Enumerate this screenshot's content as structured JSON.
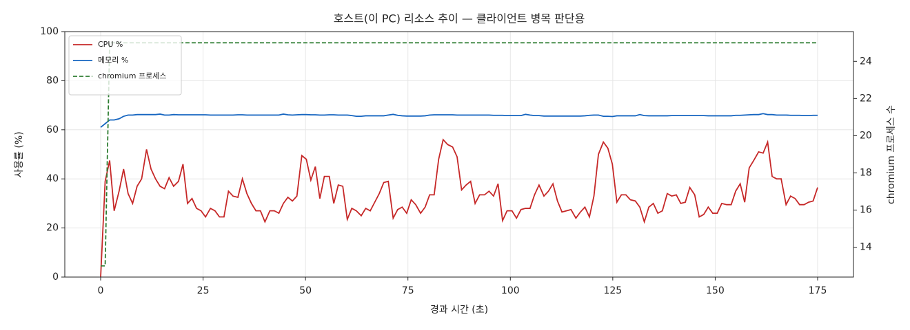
{
  "chart_data": {
    "type": "line",
    "title": "호스트(이 PC) 리소스 추이 — 클라이언트 병목 판단용",
    "x_label": "경과 시간 (초)",
    "y_label": "사용률 (%)",
    "y2_label": "chromium 프로세스 수",
    "x": [
      0,
      1.1,
      2.2,
      3.3,
      4.5,
      5.6,
      6.7,
      7.8,
      8.9,
      10.0,
      11.2,
      12.3,
      13.4,
      14.5,
      15.6,
      16.7,
      17.8,
      19.0,
      20.1,
      21.2,
      22.3,
      23.4,
      24.5,
      25.6,
      26.8,
      27.9,
      29.0,
      30.1,
      31.2,
      32.3,
      33.5,
      34.6,
      35.7,
      36.8,
      37.9,
      39.0,
      40.1,
      41.3,
      42.4,
      43.5,
      44.6,
      45.7,
      46.8,
      47.9,
      49.1,
      50.2,
      51.3,
      52.4,
      53.5,
      54.6,
      55.8,
      56.9,
      58.0,
      59.1,
      60.2,
      61.3,
      62.4,
      63.6,
      64.7,
      65.8,
      66.9,
      68.0,
      69.1,
      70.2,
      71.4,
      72.5,
      73.6,
      74.7,
      75.8,
      76.9,
      78.1,
      79.2,
      80.3,
      81.4,
      82.5,
      83.6,
      84.7,
      85.9,
      87.0,
      88.1,
      89.2,
      90.3,
      91.4,
      92.5,
      93.7,
      94.8,
      95.9,
      97.0,
      98.1,
      99.2,
      100.4,
      101.5,
      102.6,
      103.7,
      104.8,
      105.9,
      107.0,
      108.2,
      109.3,
      110.4,
      111.5,
      112.6,
      113.7,
      114.8,
      116.0,
      117.1,
      118.2,
      119.3,
      120.4,
      121.5,
      122.7,
      123.8,
      124.9,
      126.0,
      127.1,
      128.2,
      129.3,
      130.5,
      131.6,
      132.7,
      133.8,
      134.9,
      136.0,
      137.1,
      138.3,
      139.4,
      140.5,
      141.6,
      142.7,
      143.8,
      145.0,
      146.1,
      147.2,
      148.3,
      149.4,
      150.5,
      151.6,
      152.8,
      153.9,
      155.0,
      156.1,
      157.2,
      158.3,
      159.4,
      160.6,
      161.7,
      162.8,
      163.9,
      165.0,
      166.1,
      167.3,
      168.4,
      169.5,
      170.6,
      171.7,
      172.8,
      173.9,
      175.0
    ],
    "series": [
      {
        "name": "CPU %",
        "color": "#c62828",
        "dash": false,
        "values": [
          0,
          39,
          47.5,
          27,
          35,
          44,
          34,
          30,
          37,
          40,
          52,
          44,
          40,
          37,
          36,
          40.5,
          37,
          39,
          46,
          30,
          32,
          28,
          27,
          24.5,
          28,
          27,
          24.5,
          24.5,
          35,
          33,
          32.5,
          40,
          34,
          30,
          27,
          27,
          22.5,
          27,
          27,
          26,
          30,
          32.5,
          31,
          33,
          49.5,
          48,
          39.5,
          45,
          32,
          41,
          41,
          30,
          37.5,
          37,
          23.5,
          28,
          27,
          25,
          28,
          27,
          30.5,
          34,
          38.5,
          39,
          24,
          27.5,
          28.5,
          26,
          31.5,
          29.5,
          26,
          28.5,
          33.5,
          33.5,
          48,
          56,
          54,
          53,
          49,
          35.5,
          37.5,
          39,
          30,
          33.5,
          33.5,
          35,
          33,
          38,
          23,
          27,
          27,
          24,
          27.5,
          28,
          28,
          33.5,
          37.5,
          33,
          35,
          38,
          31,
          26.5,
          27,
          27.5,
          24,
          26.5,
          28.5,
          24.5,
          33,
          50,
          55,
          52.5,
          46,
          30.5,
          33.5,
          33.5,
          31.5,
          31,
          28.5,
          22.5,
          28.5,
          30,
          26,
          27,
          34,
          33,
          33.5,
          30,
          30.5,
          36.5,
          33.5,
          24.5,
          25.5,
          28.5,
          26,
          26,
          30,
          29.5,
          29.5,
          35,
          38,
          30.5,
          44.5,
          47.5,
          51,
          50.5,
          55,
          41,
          40,
          40,
          29.5,
          33,
          32,
          29.5,
          29.5,
          30.5,
          31,
          36.5
        ]
      },
      {
        "name": "메모리 %",
        "color": "#1565c0",
        "dash": false,
        "values": [
          61,
          62.5,
          64,
          64,
          64.5,
          65.5,
          66,
          66,
          66.2,
          66.2,
          66.2,
          66.2,
          66.2,
          66.4,
          66,
          66,
          66.2,
          66.1,
          66.1,
          66.1,
          66.1,
          66.1,
          66.1,
          66.1,
          66,
          66,
          66,
          66,
          66,
          66,
          66.1,
          66.1,
          66,
          66,
          66,
          66,
          66,
          66,
          66,
          66,
          66.4,
          66.1,
          66,
          66.1,
          66.2,
          66.2,
          66.1,
          66.1,
          66,
          66,
          66.1,
          66.1,
          66,
          66,
          66,
          65.8,
          65.5,
          65.5,
          65.7,
          65.7,
          65.7,
          65.7,
          65.7,
          66,
          66.3,
          65.9,
          65.7,
          65.6,
          65.6,
          65.6,
          65.6,
          65.7,
          66,
          66.1,
          66.1,
          66.1,
          66.1,
          66.1,
          66,
          66,
          66,
          66,
          66,
          66,
          66,
          66,
          65.9,
          65.9,
          65.9,
          65.8,
          65.8,
          65.8,
          65.8,
          66.3,
          66,
          65.8,
          65.8,
          65.6,
          65.6,
          65.6,
          65.6,
          65.6,
          65.6,
          65.6,
          65.6,
          65.6,
          65.7,
          65.9,
          66,
          66,
          65.5,
          65.5,
          65.4,
          65.7,
          65.7,
          65.7,
          65.7,
          65.7,
          66.2,
          65.8,
          65.7,
          65.7,
          65.7,
          65.7,
          65.7,
          65.8,
          65.8,
          65.8,
          65.8,
          65.8,
          65.8,
          65.8,
          65.8,
          65.7,
          65.7,
          65.7,
          65.7,
          65.7,
          65.7,
          65.9,
          65.9,
          66,
          66.1,
          66.2,
          66.2,
          66.6,
          66.2,
          66.2,
          66,
          66,
          66,
          65.9,
          65.9,
          65.9,
          65.8,
          65.8,
          65.9,
          65.9
        ]
      },
      {
        "name": "chromium 프로세스",
        "color": "#2e7d32",
        "dash": true,
        "axis": "y2",
        "values": [
          13,
          13,
          25,
          25,
          25,
          25,
          25,
          25,
          25,
          25,
          25,
          25,
          25,
          25,
          25,
          25,
          25,
          25,
          25,
          25,
          25,
          25,
          25,
          25,
          25,
          25,
          25,
          25,
          25,
          25,
          25,
          25,
          25,
          25,
          25,
          25,
          25,
          25,
          25,
          25,
          25,
          25,
          25,
          25,
          25,
          25,
          25,
          25,
          25,
          25,
          25,
          25,
          25,
          25,
          25,
          25,
          25,
          25,
          25,
          25,
          25,
          25,
          25,
          25,
          25,
          25,
          25,
          25,
          25,
          25,
          25,
          25,
          25,
          25,
          25,
          25,
          25,
          25,
          25,
          25,
          25,
          25,
          25,
          25,
          25,
          25,
          25,
          25,
          25,
          25,
          25,
          25,
          25,
          25,
          25,
          25,
          25,
          25,
          25,
          25,
          25,
          25,
          25,
          25,
          25,
          25,
          25,
          25,
          25,
          25,
          25,
          25,
          25,
          25,
          25,
          25,
          25,
          25,
          25,
          25,
          25,
          25,
          25,
          25,
          25,
          25,
          25,
          25,
          25,
          25,
          25,
          25,
          25,
          25,
          25,
          25,
          25,
          25,
          25,
          25,
          25,
          25,
          25,
          25,
          25,
          25,
          25,
          25,
          25,
          25,
          25,
          25,
          25,
          25,
          25,
          25,
          25,
          25
        ]
      }
    ],
    "xlim": [
      -8.75,
      183.75
    ],
    "xticks": [
      0,
      25,
      50,
      75,
      100,
      125,
      150,
      175
    ],
    "ylim": [
      0,
      100
    ],
    "yticks": [
      0,
      20,
      40,
      60,
      80,
      100
    ],
    "y2lim": [
      12.4,
      25.6
    ],
    "y2ticks": [
      14,
      16,
      18,
      20,
      22,
      24
    ],
    "grid": true,
    "legend": "upper left"
  }
}
